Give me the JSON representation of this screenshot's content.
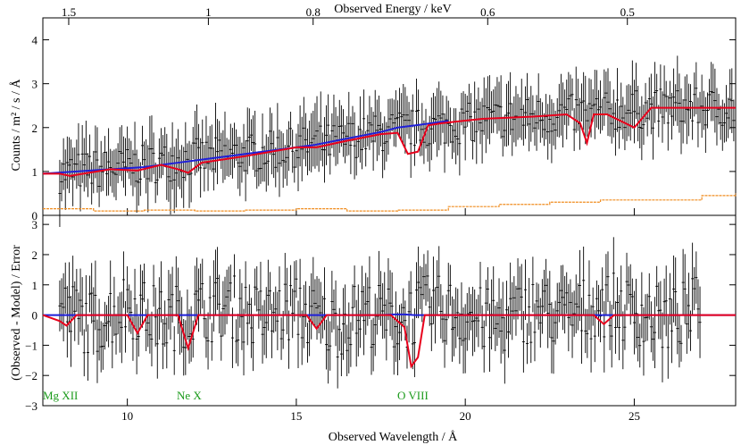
{
  "chart_data": [
    {
      "type": "line",
      "panel": "top",
      "x_axis_top": {
        "label": "Observed Energy / keV",
        "ticks": [
          "1.5",
          "1",
          "0.8",
          "0.6",
          "0.5"
        ]
      },
      "ylabel": "Counts / m² / s / Å",
      "xlim": [
        7.5,
        28
      ],
      "ylim": [
        0,
        4.5
      ],
      "y_ticks": [
        "0",
        "1",
        "2",
        "3",
        "4"
      ],
      "colors": {
        "data": "#000000",
        "model_red": "#e8001c",
        "model_blue": "#1f1fd8",
        "background": "#f08c1e"
      },
      "series": [
        {
          "role": "data",
          "color": "#000000",
          "style": "errorbars",
          "x": [
            8.0,
            9.0,
            10.0,
            11.0,
            12.0,
            13.0,
            14.0,
            15.0,
            16.0,
            17.0,
            18.0,
            19.0,
            20.0,
            21.0,
            22.0,
            23.0,
            24.0,
            25.0,
            26.0,
            27.0,
            28.0
          ],
          "y": [
            0.95,
            1.05,
            1.1,
            1.2,
            1.3,
            1.35,
            1.45,
            1.55,
            1.65,
            1.8,
            1.95,
            2.0,
            2.1,
            2.2,
            2.25,
            2.3,
            2.35,
            2.4,
            2.45,
            2.45,
            2.45
          ]
        },
        {
          "role": "model-red",
          "color": "#e8001c",
          "x": [
            7.5,
            8.0,
            8.3,
            9.5,
            10.3,
            11.0,
            11.5,
            11.8,
            12.2,
            13.5,
            15.0,
            15.6,
            16.5,
            17.5,
            18.0,
            18.3,
            18.6,
            18.9,
            19.3,
            20.5,
            22.0,
            23.0,
            23.4,
            23.6,
            23.8,
            24.2,
            25.0,
            25.5,
            26.5,
            28.0
          ],
          "y": [
            0.95,
            0.95,
            0.9,
            1.05,
            1.02,
            1.15,
            1.05,
            0.97,
            1.2,
            1.35,
            1.55,
            1.55,
            1.7,
            1.85,
            1.88,
            1.4,
            1.45,
            2.05,
            2.1,
            2.2,
            2.25,
            2.3,
            2.1,
            1.65,
            2.3,
            2.3,
            2.0,
            2.45,
            2.45,
            2.45
          ]
        },
        {
          "role": "model-blue",
          "color": "#1f1fd8",
          "x": [
            7.5,
            8.5,
            9.5,
            10.5,
            11.5,
            12.5,
            13.5,
            14.5,
            15.5,
            16.5,
            17.5,
            18.0,
            18.5,
            19.0,
            19.5
          ],
          "y": [
            0.95,
            1.0,
            1.05,
            1.1,
            1.2,
            1.3,
            1.4,
            1.5,
            1.6,
            1.75,
            1.9,
            2.0,
            2.05,
            2.1,
            2.15
          ]
        },
        {
          "role": "background",
          "color": "#f08c1e",
          "style": "step",
          "x": [
            7.5,
            9.0,
            10.5,
            12.0,
            13.5,
            15.0,
            16.5,
            18.0,
            19.5,
            21.0,
            22.5,
            24.0,
            25.5,
            27.0,
            28.0
          ],
          "y": [
            0.15,
            0.1,
            0.12,
            0.1,
            0.12,
            0.15,
            0.1,
            0.12,
            0.2,
            0.25,
            0.3,
            0.35,
            0.35,
            0.45,
            0.5
          ]
        }
      ]
    },
    {
      "type": "line",
      "panel": "bottom",
      "xlabel": "Observed Wavelength / Å",
      "ylabel": "(Observed - Model) / Error",
      "xlim": [
        7.5,
        28
      ],
      "ylim": [
        -3,
        3.3
      ],
      "x_ticks": [
        "10",
        "15",
        "20",
        "25"
      ],
      "y_ticks": [
        "3",
        "2",
        "1",
        "0",
        "−1",
        "−2",
        "−3"
      ],
      "annotations": [
        {
          "text": "Mg XII",
          "color": "#1a9a1a"
        },
        {
          "text": "Ne X",
          "color": "#1a9a1a"
        },
        {
          "text": "O VIII",
          "color": "#1a9a1a"
        }
      ],
      "series": [
        {
          "role": "residuals",
          "color": "#000000",
          "style": "errorbars",
          "x": [
            8.0,
            9.0,
            10.0,
            11.0,
            12.0,
            13.0,
            14.0,
            15.0,
            16.0,
            17.0,
            18.0,
            19.0,
            20.0,
            21.0,
            22.0,
            23.0,
            24.0,
            25.0,
            26.0,
            27.0
          ],
          "y": [
            0.2,
            -0.3,
            0.4,
            -0.2,
            0.1,
            0.3,
            -0.1,
            0.2,
            -0.4,
            0.1,
            -0.2,
            0.3,
            0.0,
            -0.3,
            0.2,
            -0.1,
            0.4,
            0.1,
            -0.2,
            0.3
          ]
        },
        {
          "role": "line-model-red",
          "color": "#e8001c",
          "x": [
            7.5,
            8.0,
            8.2,
            8.5,
            10.0,
            10.3,
            10.6,
            11.5,
            11.8,
            12.1,
            15.3,
            15.6,
            15.9,
            17.8,
            18.2,
            18.4,
            18.6,
            18.8,
            19.2,
            23.8,
            24.1,
            24.4,
            28.0
          ],
          "y": [
            0.0,
            -0.2,
            -0.35,
            0.0,
            0.0,
            -0.6,
            0.0,
            0.0,
            -1.1,
            0.0,
            0.0,
            -0.45,
            0.0,
            0.0,
            -0.4,
            -1.7,
            -1.4,
            0.0,
            0.0,
            0.0,
            -0.3,
            0.0,
            0.0
          ]
        },
        {
          "role": "line-model-blue",
          "color": "#1f1fd8",
          "x": [
            7.5,
            17.5,
            17.9,
            18.2,
            18.5,
            28.0
          ],
          "y": [
            0.0,
            0.0,
            0.02,
            0.02,
            0.0,
            0.0
          ]
        }
      ]
    }
  ]
}
